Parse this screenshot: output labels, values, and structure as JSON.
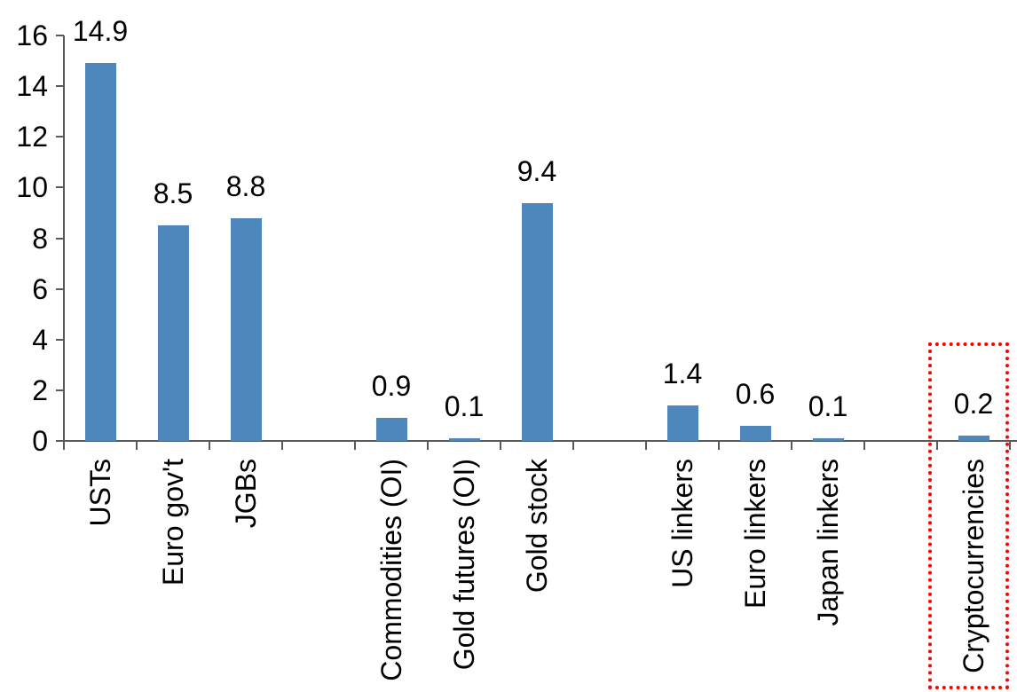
{
  "chart_data": {
    "type": "bar",
    "title": "",
    "xlabel": "",
    "ylabel": "",
    "categories": [
      "USTs",
      "Euro gov't",
      "JGBs",
      "Commodities (OI)",
      "Gold futures (OI)",
      "Gold stock",
      "US linkers",
      "Euro linkers",
      "Japan linkers",
      "Cryptocurrencies"
    ],
    "values": [
      14.9,
      8.5,
      8.8,
      0.9,
      0.1,
      9.4,
      1.4,
      0.6,
      0.1,
      0.2
    ],
    "data_labels": [
      "14.9",
      "8.5",
      "8.8",
      "0.9",
      "0.1",
      "9.4",
      "1.4",
      "0.6",
      "0.1",
      "0.2"
    ],
    "category_slots": [
      0,
      1,
      2,
      4,
      5,
      6,
      8,
      9,
      10,
      12
    ],
    "total_slots": 13,
    "ylim": [
      0,
      16
    ],
    "yticks": [
      "16",
      "14",
      "12",
      "10",
      "8",
      "6",
      "4",
      "2",
      "0"
    ],
    "ytick_values": [
      16,
      14,
      12,
      10,
      8,
      6,
      4,
      2,
      0
    ],
    "grid": false,
    "legend": false,
    "bar_color": "#4E87BC",
    "axis_color": "#595959",
    "label_color": "#000000",
    "highlight": {
      "category": "Cryptocurrencies",
      "style": "red-dotted-box",
      "color": "#FF0000"
    }
  }
}
